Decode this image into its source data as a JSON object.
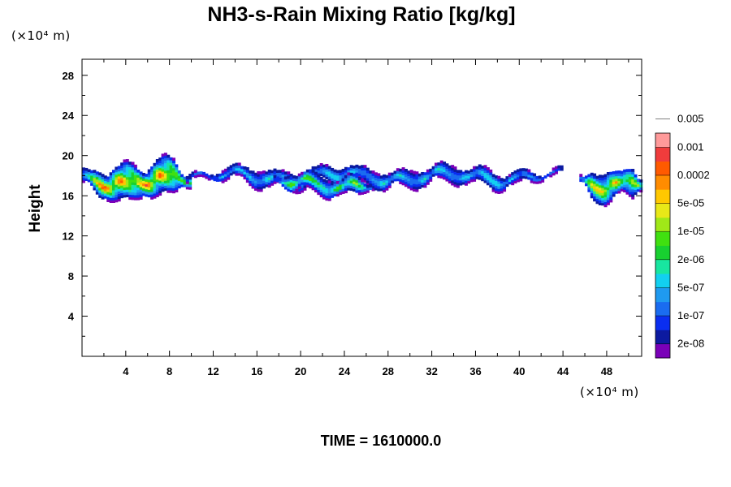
{
  "chart_data": {
    "type": "heatmap",
    "title": "NH3-s-Rain Mixing Ratio [kg/kg]",
    "ylabel": "Height",
    "x_unit_label": "(×10⁴ m)",
    "y_unit_label": "(×10⁴ m)",
    "time_label": "TIME = 1610000.0",
    "xlim": [
      0,
      51.2
    ],
    "ylim": [
      0,
      29.6
    ],
    "x_ticks": [
      4,
      8,
      12,
      16,
      20,
      24,
      28,
      32,
      36,
      40,
      44,
      48
    ],
    "y_ticks": [
      4,
      8,
      12,
      16,
      20,
      24,
      28
    ],
    "colorbar": {
      "colors": [
        "#7a00b8",
        "#0c1aa0",
        "#0a2ef0",
        "#1a6cf0",
        "#1f9af0",
        "#12d0f0",
        "#18e6a0",
        "#18d030",
        "#40e010",
        "#a0e818",
        "#e8e818",
        "#ffc800",
        "#ff8c00",
        "#ff5a00",
        "#f03c3c",
        "#ff9a9a"
      ],
      "labels": [
        "2e-08",
        "1e-07",
        "5e-07",
        "2e-06",
        "1e-05",
        "5e-05",
        "0.0002",
        "0.001",
        "0.005"
      ]
    },
    "bands": [
      {
        "x0": 0.0,
        "x1": 10.0,
        "ybase": 17.4,
        "amp": 1.9,
        "peak": 14,
        "seed": 1.3
      },
      {
        "x0": 9.5,
        "x1": 44.0,
        "ybase": 17.8,
        "amp": 0.9,
        "peak": 6,
        "seed": 2.7
      },
      {
        "x0": 17.5,
        "x1": 26.5,
        "ybase": 17.1,
        "amp": 1.0,
        "peak": 9,
        "seed": 4.1
      },
      {
        "x0": 45.5,
        "x1": 51.2,
        "ybase": 17.2,
        "amp": 1.6,
        "peak": 12,
        "seed": 5.9
      }
    ]
  }
}
